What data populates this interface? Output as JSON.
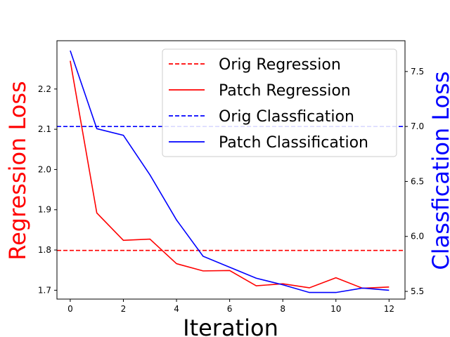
{
  "chart_data": {
    "type": "line",
    "x": [
      0,
      1,
      2,
      3,
      4,
      5,
      6,
      7,
      8,
      9,
      10,
      11,
      12
    ],
    "xlabel": "Iteration",
    "ylabel_left": "Regression Loss",
    "ylabel_right": "Classfication Loss",
    "xlim": [
      -0.5,
      12.6
    ],
    "ylim_left": [
      1.678,
      2.32
    ],
    "ylim_right": [
      5.43,
      7.78
    ],
    "xticks": [
      0,
      2,
      4,
      6,
      8,
      10,
      12
    ],
    "yticks_left": [
      1.7,
      1.8,
      1.9,
      2.0,
      2.1,
      2.2
    ],
    "yticks_right": [
      5.5,
      6.0,
      6.5,
      7.0,
      7.5
    ],
    "left_axis_color": "#ff0000",
    "right_axis_color": "#0000ff",
    "series": [
      {
        "name": "Orig Regression",
        "axis": "left",
        "style": "dashed",
        "color": "#ff0000",
        "constant": 1.799
      },
      {
        "name": "Patch Regression",
        "axis": "left",
        "style": "solid",
        "color": "#ff0000",
        "values": [
          2.27,
          1.892,
          1.824,
          1.827,
          1.766,
          1.748,
          1.749,
          1.711,
          1.716,
          1.706,
          1.731,
          1.705,
          1.708
        ]
      },
      {
        "name": "Orig Classfication",
        "axis": "right",
        "style": "dashed",
        "color": "#0000ff",
        "constant": 7.0
      },
      {
        "name": "Patch Classification",
        "axis": "right",
        "style": "solid",
        "color": "#0000ff",
        "values": [
          7.69,
          6.98,
          6.92,
          6.56,
          6.15,
          5.82,
          5.72,
          5.62,
          5.56,
          5.49,
          5.49,
          5.53,
          5.51
        ]
      }
    ],
    "legend": "top-right",
    "grid": false
  }
}
